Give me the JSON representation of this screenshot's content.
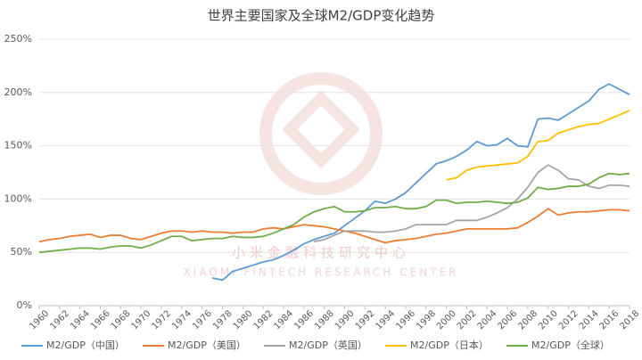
{
  "chart_data": {
    "type": "line",
    "title": "世界主要国家及全球M2/GDP变化趋势",
    "watermark": [
      "小米金融科技研究中心",
      "XIAOMI FINTECH RESEARCH CENTER"
    ],
    "x": [
      1960,
      1961,
      1962,
      1963,
      1964,
      1965,
      1966,
      1967,
      1968,
      1969,
      1970,
      1971,
      1972,
      1973,
      1974,
      1975,
      1976,
      1977,
      1978,
      1979,
      1980,
      1981,
      1982,
      1983,
      1984,
      1985,
      1986,
      1987,
      1988,
      1989,
      1990,
      1991,
      1992,
      1993,
      1994,
      1995,
      1996,
      1997,
      1998,
      1999,
      2000,
      2001,
      2002,
      2003,
      2004,
      2005,
      2006,
      2007,
      2008,
      2009,
      2010,
      2011,
      2012,
      2013,
      2014,
      2015,
      2016,
      2017,
      2018
    ],
    "xlim": [
      1960,
      2018
    ],
    "xticks": [
      1960,
      1962,
      1964,
      1966,
      1968,
      1970,
      1972,
      1974,
      1976,
      1978,
      1980,
      1982,
      1984,
      1986,
      1988,
      1990,
      1992,
      1994,
      1996,
      1998,
      2000,
      2002,
      2004,
      2006,
      2008,
      2010,
      2012,
      2014,
      2016,
      2018
    ],
    "ylim": [
      0,
      250
    ],
    "yticks": [
      {
        "value": 0,
        "label": "0%"
      },
      {
        "value": 50,
        "label": "50%"
      },
      {
        "value": 100,
        "label": "100%"
      },
      {
        "value": 150,
        "label": "150%"
      },
      {
        "value": 200,
        "label": "200%"
      },
      {
        "value": 250,
        "label": "250%"
      }
    ],
    "grid": true,
    "legend": "bottom",
    "series": [
      {
        "name": "M2/GDP（中国）",
        "color": "#5b9bd5",
        "values": [
          null,
          null,
          null,
          null,
          null,
          null,
          null,
          null,
          null,
          null,
          null,
          null,
          null,
          null,
          null,
          null,
          null,
          26,
          24,
          32,
          35,
          38,
          41,
          43,
          47,
          52,
          58,
          62,
          65,
          68,
          75,
          82,
          89,
          98,
          96,
          100,
          106,
          115,
          124,
          133,
          136,
          140,
          146,
          154,
          150,
          151,
          157,
          150,
          149,
          175,
          176,
          174,
          180,
          186,
          192,
          203,
          208,
          203,
          198
        ]
      },
      {
        "name": "M2/GDP（美国）",
        "color": "#ed7d31",
        "values": [
          60,
          62,
          63,
          65,
          66,
          67,
          64,
          66,
          66,
          63,
          62,
          65,
          68,
          70,
          70,
          69,
          70,
          69,
          69,
          68,
          69,
          69,
          72,
          73,
          72,
          74,
          76,
          75,
          74,
          72,
          70,
          68,
          65,
          62,
          59,
          61,
          62,
          63,
          65,
          67,
          68,
          70,
          72,
          72,
          72,
          72,
          72,
          73,
          78,
          84,
          91,
          85,
          87,
          88,
          88,
          89,
          90,
          90,
          89
        ]
      },
      {
        "name": "M2/GDP（英国）",
        "color": "#a5a5a5",
        "values": [
          null,
          null,
          null,
          null,
          null,
          null,
          null,
          null,
          null,
          null,
          null,
          null,
          null,
          null,
          null,
          null,
          null,
          null,
          null,
          null,
          null,
          null,
          null,
          null,
          null,
          null,
          null,
          60,
          62,
          66,
          70,
          70,
          70,
          69,
          69,
          70,
          72,
          76,
          76,
          76,
          76,
          80,
          80,
          80,
          83,
          87,
          92,
          100,
          111,
          125,
          132,
          127,
          119,
          118,
          112,
          110,
          113,
          113,
          112
        ]
      },
      {
        "name": "M2/GDP（日本）",
        "color": "#ffc000",
        "values": [
          null,
          null,
          null,
          null,
          null,
          null,
          null,
          null,
          null,
          null,
          null,
          null,
          null,
          null,
          null,
          null,
          null,
          null,
          null,
          null,
          null,
          null,
          null,
          null,
          null,
          null,
          null,
          null,
          null,
          null,
          null,
          null,
          null,
          null,
          null,
          null,
          null,
          null,
          null,
          null,
          118,
          120,
          127,
          130,
          131,
          132,
          133,
          134,
          140,
          154,
          155,
          162,
          165,
          168,
          170,
          171,
          175,
          179,
          183
        ]
      },
      {
        "name": "M2/GDP（全球）",
        "color": "#70ad47",
        "values": [
          50,
          51,
          52,
          53,
          54,
          54,
          53,
          55,
          56,
          56,
          54,
          57,
          61,
          65,
          65,
          61,
          62,
          63,
          63,
          65,
          64,
          64,
          65,
          68,
          72,
          76,
          83,
          88,
          91,
          93,
          88,
          88,
          89,
          92,
          92,
          93,
          91,
          91,
          93,
          99,
          99,
          96,
          97,
          97,
          98,
          97,
          96,
          97,
          101,
          111,
          109,
          110,
          112,
          112,
          114,
          120,
          124,
          123,
          124
        ]
      }
    ]
  }
}
